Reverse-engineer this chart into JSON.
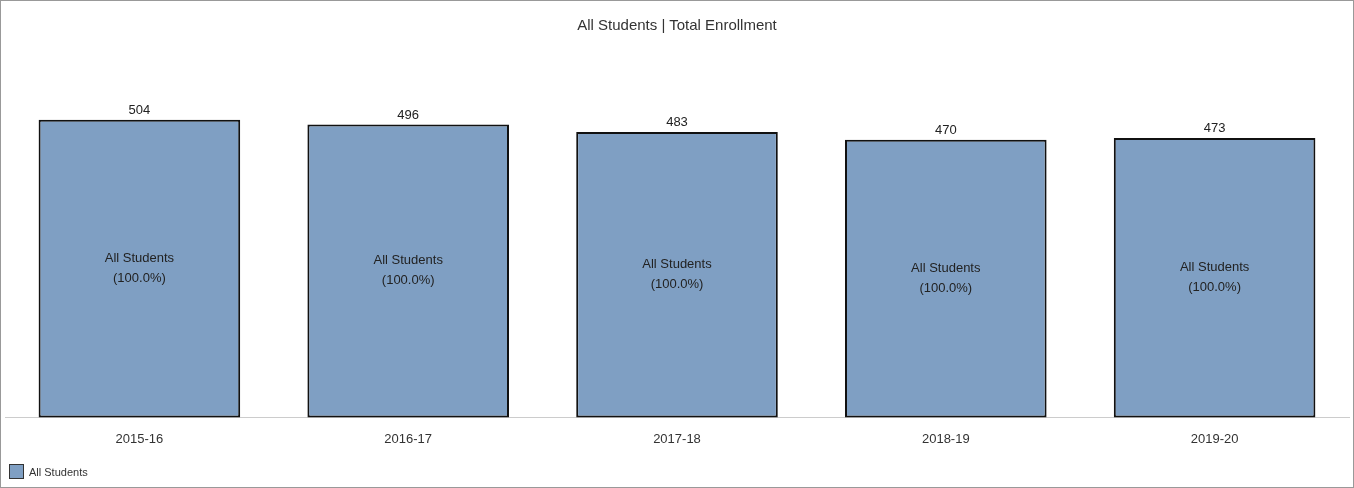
{
  "chart_data": {
    "type": "bar",
    "title": "All Students | Total Enrollment",
    "categories": [
      "2015-16",
      "2016-17",
      "2017-18",
      "2018-19",
      "2019-20"
    ],
    "series": [
      {
        "name": "All Students",
        "color": "#7f9fc3",
        "values": [
          504,
          496,
          483,
          470,
          473
        ]
      }
    ],
    "data_labels": true,
    "annotations": [
      "All Students\n(100.0%)",
      "All Students\n(100.0%)",
      "All Students\n(100.0%)",
      "All Students\n(100.0%)",
      "All Students\n(100.0%)"
    ],
    "tick_labels": "x",
    "legend": "bottom left"
  }
}
